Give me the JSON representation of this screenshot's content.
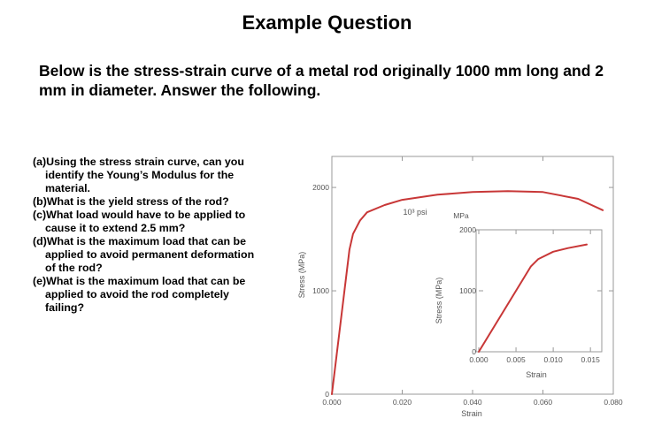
{
  "title": "Example Question",
  "intro": "Below is the stress-strain curve of a metal rod originally 1000 mm long and 2 mm in diameter. Answer the following.",
  "questions": [
    "(a)Using the stress strain curve, can you identify the Young’s Modulus for the material.",
    "(b)What is the yield stress of the rod?",
    "(c)What load would have to be applied to cause it to extend 2.5 mm?",
    "(d)What is the maximum load that can be applied to avoid permanent deformation of the rod?",
    "(e)What is the maximum load that can be applied to avoid the rod completely failing?"
  ],
  "chart_data": [
    {
      "type": "line",
      "title": "",
      "xlabel": "Strain",
      "ylabel": "Stress (MPa)",
      "y2label": "10³ psi",
      "xlim": [
        0,
        0.08
      ],
      "ylim": [
        0,
        2300
      ],
      "xticks": [
        "0.000",
        "0.020",
        "0.040",
        "0.060",
        "0.080"
      ],
      "yticks": [
        "0",
        "1000",
        "2000"
      ],
      "series": [
        {
          "color": "#c83737",
          "x": [
            0.0,
            0.005,
            0.006,
            0.008,
            0.01,
            0.015,
            0.02,
            0.03,
            0.04,
            0.05,
            0.06,
            0.07,
            0.077
          ],
          "y": [
            0,
            1400,
            1550,
            1680,
            1760,
            1830,
            1880,
            1930,
            1955,
            1965,
            1955,
            1890,
            1780
          ]
        }
      ]
    },
    {
      "type": "line",
      "title": "",
      "xlabel": "Strain",
      "ylabel": "Stress (MPa)",
      "ylabel_top": "MPa",
      "xlim": [
        0,
        0.017
      ],
      "ylim": [
        0,
        2000
      ],
      "xticks": [
        "0.000",
        "0.005",
        "0.010",
        "0.015"
      ],
      "yticks": [
        "0",
        "1000",
        "2000"
      ],
      "series": [
        {
          "color": "#c83737",
          "x": [
            0.0,
            0.007,
            0.008,
            0.01,
            0.012,
            0.0145
          ],
          "y": [
            0,
            1400,
            1520,
            1640,
            1700,
            1760
          ]
        }
      ]
    }
  ]
}
